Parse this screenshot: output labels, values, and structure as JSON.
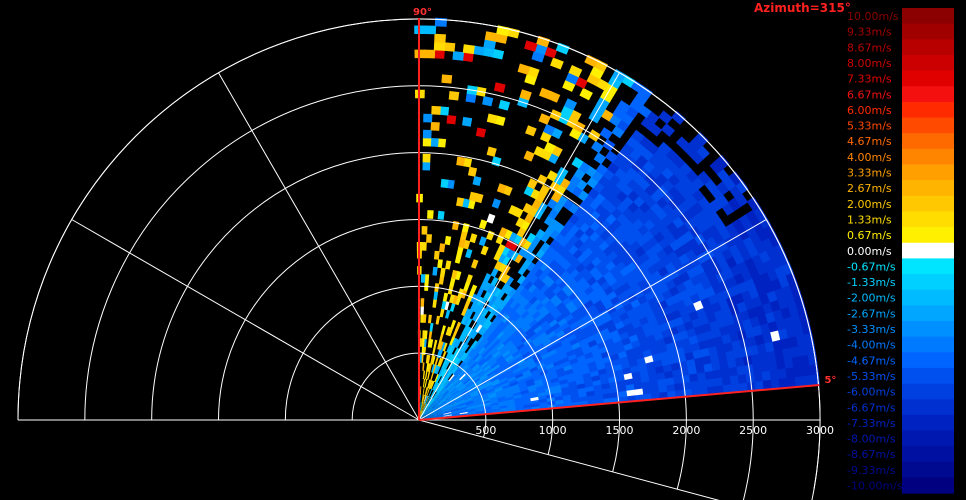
{
  "chart_data": {
    "type": "heatmap",
    "subtype": "polar-sector-velocity",
    "title": "Azimuth=315°",
    "sector": {
      "start_angle_label": "5°",
      "end_angle_label": "90°",
      "start_deg": 5,
      "end_deg": 90
    },
    "range": {
      "unit": "",
      "max": 3000,
      "ticks": [
        500,
        1000,
        1500,
        2000,
        2500,
        3000
      ],
      "rings": [
        500,
        1000,
        1500,
        2000,
        2500,
        3000
      ]
    },
    "spokes_deg": [
      0,
      30,
      60,
      90,
      120,
      150,
      180,
      -15
    ],
    "colorbar": {
      "unit": "m/s",
      "min": -10,
      "max": 10,
      "labels": [
        "10.00m/s",
        "9.33m/s",
        "8.67m/s",
        "8.00m/s",
        "7.33m/s",
        "6.67m/s",
        "6.00m/s",
        "5.33m/s",
        "4.67m/s",
        "4.00m/s",
        "3.33m/s",
        "2.67m/s",
        "2.00m/s",
        "1.33m/s",
        "0.67m/s",
        "0.00m/s",
        "-0.67m/s",
        "-1.33m/s",
        "-2.00m/s",
        "-2.67m/s",
        "-3.33m/s",
        "-4.00m/s",
        "-4.67m/s",
        "-5.33m/s",
        "-6.00m/s",
        "-6.67m/s",
        "-7.33m/s",
        "-8.00m/s",
        "-8.67m/s",
        "-9.33m/s",
        "-10.00m/s"
      ],
      "colors": [
        "#8b0000",
        "#a00000",
        "#b80000",
        "#cc0000",
        "#e00000",
        "#f51010",
        "#ff2a00",
        "#ff4a00",
        "#ff6a00",
        "#ff8500",
        "#ffa000",
        "#ffb400",
        "#ffc800",
        "#ffdd00",
        "#fff000",
        "#ffffff",
        "#00e5ff",
        "#00d0ff",
        "#00bbff",
        "#00a6ff",
        "#0090ff",
        "#007aff",
        "#0064ff",
        "#0050f0",
        "#0040e0",
        "#0030d0",
        "#0022c0",
        "#0018b0",
        "#0010a0",
        "#000a90",
        "#000080"
      ]
    },
    "velocity_profile": {
      "description_units": "m/s vs range; dominant field is negative (approaching)",
      "near_range_high_elev": [
        0.67,
        2.0
      ],
      "low_elev_mid_range": [
        -4.0,
        -6.0
      ],
      "far_range": [
        -6.0,
        -7.3
      ]
    }
  }
}
